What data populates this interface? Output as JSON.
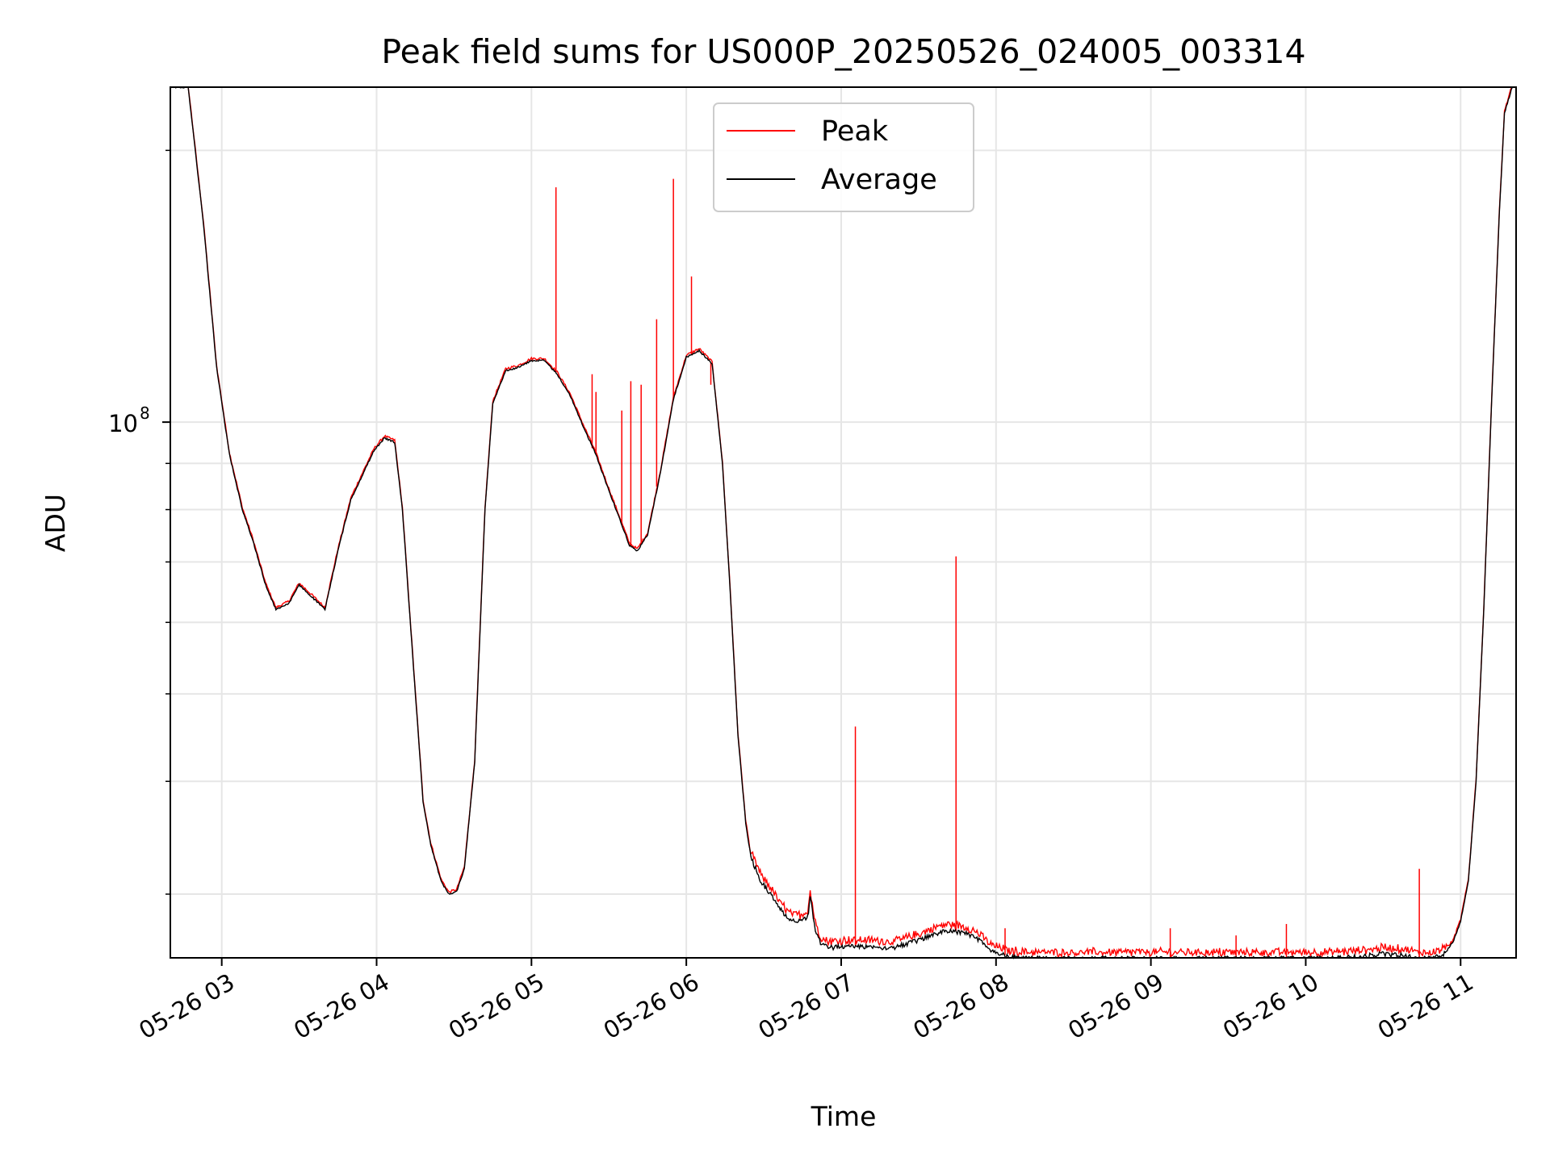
{
  "chart_data": {
    "type": "line",
    "title": "Peak field sums for US000P_20250526_024005_003314",
    "xlabel": "Time",
    "ylabel": "ADU",
    "x_scale": "time",
    "y_scale": "log",
    "xlim": [
      "2025-05-26T02:40:05",
      "2025-05-26T11:21:30"
    ],
    "ylim": [
      25500000,
      235000000
    ],
    "x_ticks": [
      {
        "t": "2025-05-26T03:00",
        "label": "05-26 03"
      },
      {
        "t": "2025-05-26T04:00",
        "label": "05-26 04"
      },
      {
        "t": "2025-05-26T05:00",
        "label": "05-26 05"
      },
      {
        "t": "2025-05-26T06:00",
        "label": "05-26 06"
      },
      {
        "t": "2025-05-26T07:00",
        "label": "05-26 07"
      },
      {
        "t": "2025-05-26T08:00",
        "label": "05-26 08"
      },
      {
        "t": "2025-05-26T09:00",
        "label": "05-26 09"
      },
      {
        "t": "2025-05-26T10:00",
        "label": "05-26 10"
      },
      {
        "t": "2025-05-26T11:00",
        "label": "05-26 11"
      }
    ],
    "y_major_ticks": [
      {
        "value": 100000000,
        "base": "10",
        "exp": "8"
      }
    ],
    "y_minor_ticks": [
      30000000,
      40000000,
      50000000,
      60000000,
      70000000,
      80000000,
      90000000,
      200000000
    ],
    "grid": true,
    "legend_position": "top-center",
    "series": [
      {
        "name": "Average",
        "color": "#000000",
        "x": [
          "2025-05-26T02:40:00",
          "2025-05-26T02:47:00",
          "2025-05-26T02:53:00",
          "2025-05-26T02:58:00",
          "2025-05-26T03:03:00",
          "2025-05-26T03:08:00",
          "2025-05-26T03:12:00",
          "2025-05-26T03:17:00",
          "2025-05-26T03:21:00",
          "2025-05-26T03:26:00",
          "2025-05-26T03:30:00",
          "2025-05-26T03:35:00",
          "2025-05-26T03:40:00",
          "2025-05-26T03:45:00",
          "2025-05-26T03:50:00",
          "2025-05-26T03:55:00",
          "2025-05-26T03:59:00",
          "2025-05-26T04:03:00",
          "2025-05-26T04:07:00",
          "2025-05-26T04:10:00",
          "2025-05-26T04:14:00",
          "2025-05-26T04:18:00",
          "2025-05-26T04:21:00",
          "2025-05-26T04:25:00",
          "2025-05-26T04:28:00",
          "2025-05-26T04:31:00",
          "2025-05-26T04:34:00",
          "2025-05-26T04:38:00",
          "2025-05-26T04:42:00",
          "2025-05-26T04:45:00",
          "2025-05-26T04:50:00",
          "2025-05-26T04:55:00",
          "2025-05-26T05:00:00",
          "2025-05-26T05:05:00",
          "2025-05-26T05:10:00",
          "2025-05-26T05:15:00",
          "2025-05-26T05:20:00",
          "2025-05-26T05:25:00",
          "2025-05-26T05:30:00",
          "2025-05-26T05:35:00",
          "2025-05-26T05:38:00",
          "2025-05-26T05:41:00",
          "2025-05-26T05:45:00",
          "2025-05-26T05:50:00",
          "2025-05-26T05:55:00",
          "2025-05-26T06:00:00",
          "2025-05-26T06:05:00",
          "2025-05-26T06:10:00",
          "2025-05-26T06:14:00",
          "2025-05-26T06:17:00",
          "2025-05-26T06:20:00",
          "2025-05-26T06:23:00",
          "2025-05-26T06:25:00",
          "2025-05-26T06:29:00",
          "2025-05-26T06:33:00",
          "2025-05-26T06:36:00",
          "2025-05-26T06:40:00",
          "2025-05-26T06:43:00",
          "2025-05-26T06:47:00",
          "2025-05-26T06:48:00",
          "2025-05-26T06:50:00",
          "2025-05-26T06:52:00",
          "2025-05-26T06:55:00",
          "2025-05-26T07:00:00",
          "2025-05-26T07:10:00",
          "2025-05-26T07:20:00",
          "2025-05-26T07:30:00",
          "2025-05-26T07:37:00",
          "2025-05-26T07:42:00",
          "2025-05-26T07:48:00",
          "2025-05-26T07:53:00",
          "2025-05-26T07:58:00",
          "2025-05-26T08:05:00",
          "2025-05-26T08:15:00",
          "2025-05-26T08:25:00",
          "2025-05-26T08:35:00",
          "2025-05-26T08:45:00",
          "2025-05-26T09:00:00",
          "2025-05-26T09:15:00",
          "2025-05-26T09:30:00",
          "2025-05-26T09:45:00",
          "2025-05-26T10:00:00",
          "2025-05-26T10:10:00",
          "2025-05-26T10:20:00",
          "2025-05-26T10:30:00",
          "2025-05-26T10:38:00",
          "2025-05-26T10:43:00",
          "2025-05-26T10:48:00",
          "2025-05-26T10:53:00",
          "2025-05-26T10:57:00",
          "2025-05-26T11:00:00",
          "2025-05-26T11:03:00",
          "2025-05-26T11:06:00",
          "2025-05-26T11:09:00",
          "2025-05-26T11:12:00",
          "2025-05-26T11:15:00",
          "2025-05-26T11:17:00",
          "2025-05-26T11:20:00"
        ],
        "y": [
          235000000,
          235000000,
          165000000,
          115000000,
          92000000,
          80000000,
          74000000,
          66000000,
          62000000,
          63000000,
          66000000,
          64000000,
          62000000,
          72000000,
          82000000,
          88000000,
          93000000,
          96000000,
          95000000,
          80000000,
          55000000,
          38000000,
          34000000,
          31000000,
          30000000,
          30200000,
          32000000,
          42000000,
          80000000,
          105000000,
          114000000,
          115000000,
          117000000,
          117000000,
          113000000,
          107000000,
          99000000,
          92000000,
          84000000,
          77000000,
          73000000,
          72000000,
          75000000,
          88000000,
          106000000,
          118000000,
          120000000,
          116000000,
          90000000,
          65000000,
          45000000,
          36000000,
          33000000,
          31000000,
          30000000,
          29000000,
          28200000,
          28000000,
          28300000,
          29800000,
          27500000,
          26500000,
          26200000,
          26300000,
          26300000,
          26200000,
          26700000,
          27200000,
          27400000,
          27200000,
          26800000,
          26000000,
          25600000,
          25300000,
          25200000,
          25100000,
          25000000,
          25000000,
          25000000,
          25000000,
          25000000,
          25000000,
          25200000,
          25600000,
          25800000,
          25700000,
          25500000,
          25400000,
          25700000,
          26500000,
          28000000,
          31000000,
          40000000,
          62000000,
          105000000,
          170000000,
          220000000,
          235000000
        ]
      },
      {
        "name": "Peak",
        "color": "#ff0000",
        "spikes": [
          {
            "t": "2025-05-26T05:09:30",
            "y": 182000000
          },
          {
            "t": "2025-05-26T05:23:30",
            "y": 113000000
          },
          {
            "t": "2025-05-26T05:25:00",
            "y": 108000000
          },
          {
            "t": "2025-05-26T05:35:00",
            "y": 103000000
          },
          {
            "t": "2025-05-26T05:38:30",
            "y": 111000000
          },
          {
            "t": "2025-05-26T05:42:30",
            "y": 110000000
          },
          {
            "t": "2025-05-26T05:48:30",
            "y": 130000000
          },
          {
            "t": "2025-05-26T05:55:00",
            "y": 186000000
          },
          {
            "t": "2025-05-26T06:02:00",
            "y": 145000000
          },
          {
            "t": "2025-05-26T06:09:30",
            "y": 110000000
          },
          {
            "t": "2025-05-26T07:05:30",
            "y": 46000000
          },
          {
            "t": "2025-05-26T07:44:30",
            "y": 71000000
          },
          {
            "t": "2025-05-26T08:03:30",
            "y": 27500000
          },
          {
            "t": "2025-05-26T09:07:30",
            "y": 27500000
          },
          {
            "t": "2025-05-26T09:33:00",
            "y": 27000000
          },
          {
            "t": "2025-05-26T09:52:30",
            "y": 27800000
          },
          {
            "t": "2025-05-26T10:44:00",
            "y": 32000000
          }
        ]
      }
    ]
  }
}
